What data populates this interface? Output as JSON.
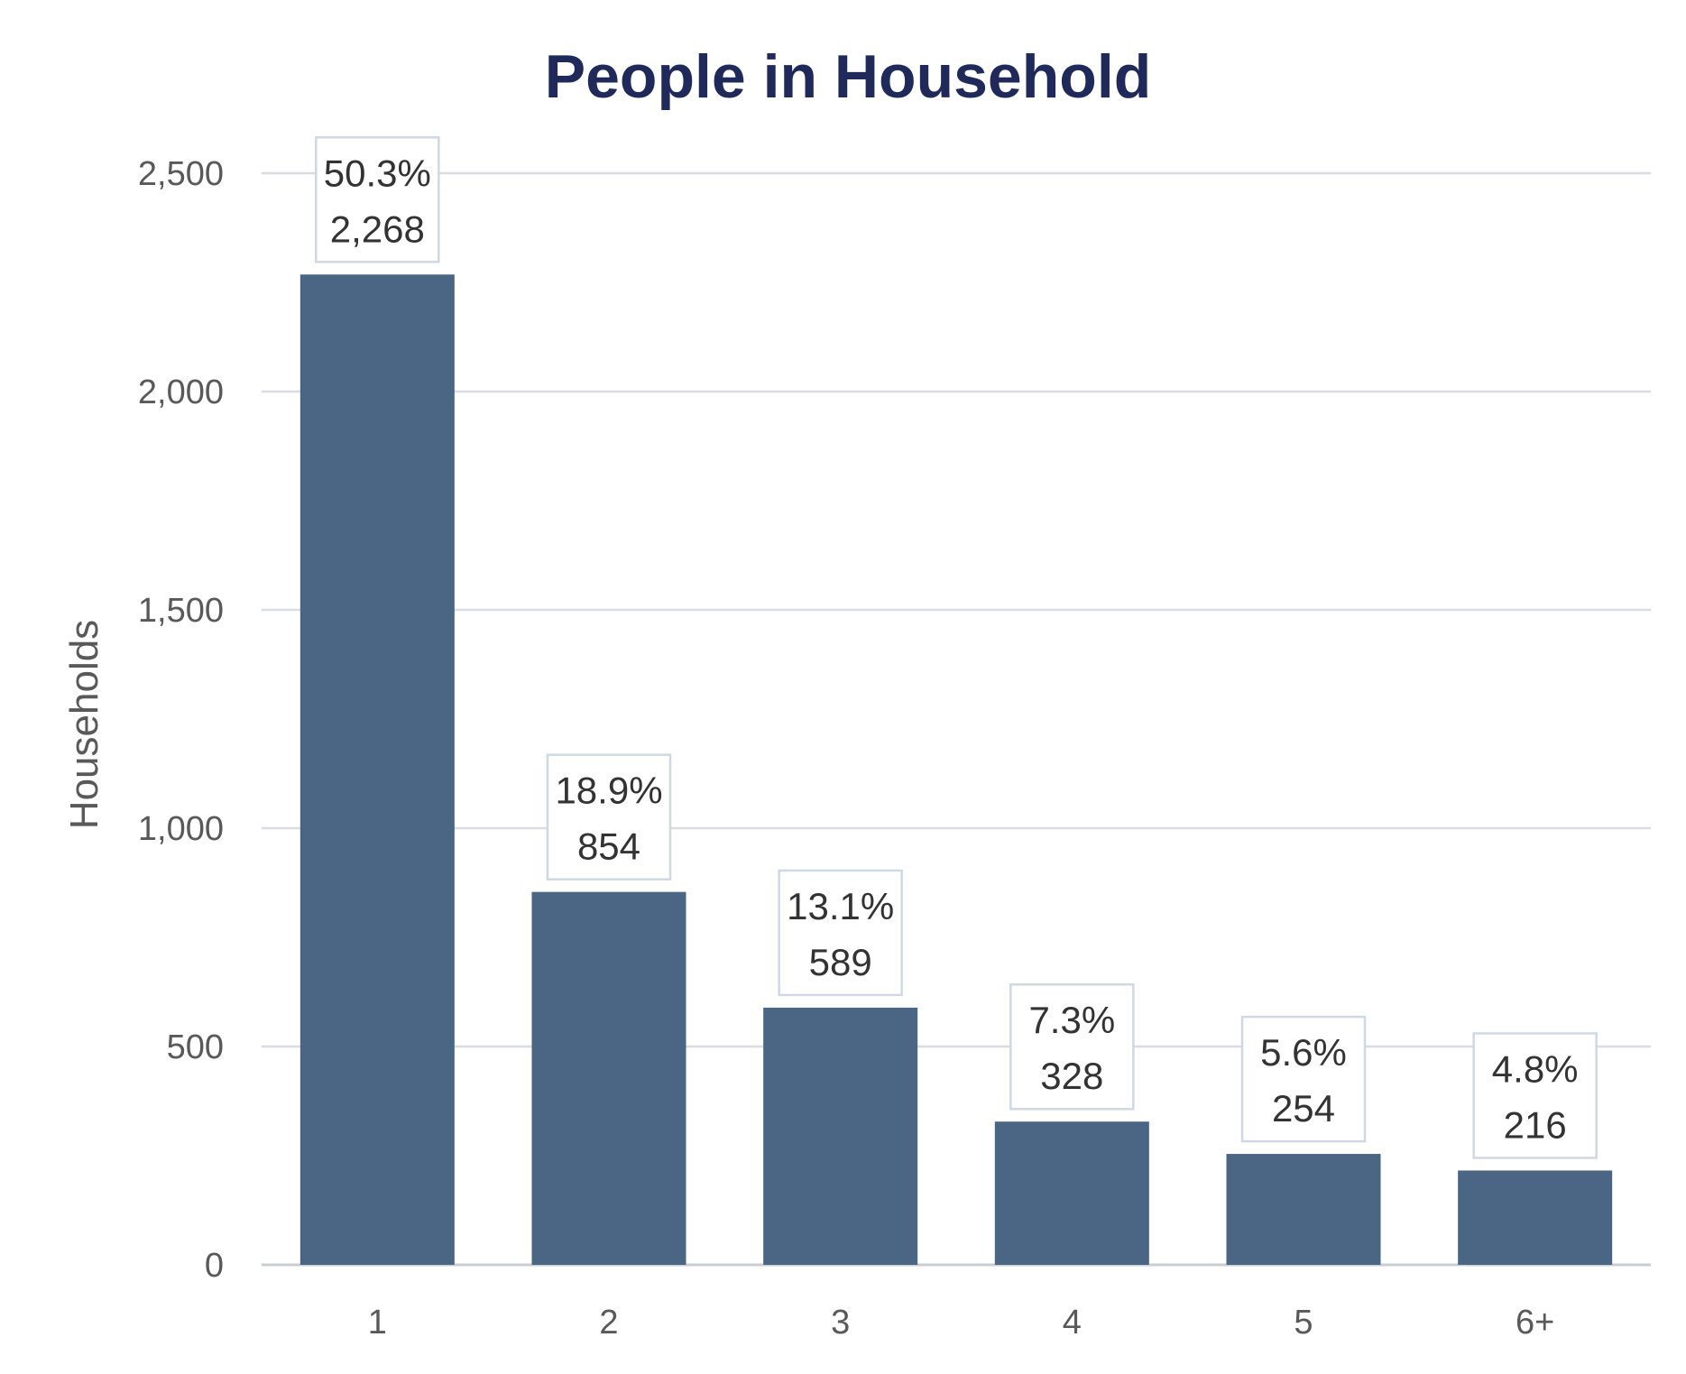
{
  "chart_data": {
    "type": "bar",
    "title": "People in Household",
    "xlabel": "",
    "ylabel": "Households",
    "categories": [
      "1",
      "2",
      "3",
      "4",
      "5",
      "6+"
    ],
    "values": [
      2268,
      854,
      589,
      328,
      254,
      216
    ],
    "percent_labels": [
      "50.3%",
      "18.9%",
      "13.1%",
      "7.3%",
      "5.6%",
      "4.8%"
    ],
    "value_labels": [
      "2,268",
      "854",
      "589",
      "328",
      "254",
      "216"
    ],
    "yticks": [
      0,
      500,
      1000,
      1500,
      2000,
      2500
    ],
    "ytick_labels": [
      "0",
      "500",
      "1,000",
      "1,500",
      "2,000",
      "2,500"
    ],
    "ylim": [
      0,
      2500
    ],
    "grid": true,
    "legend": "none",
    "colors": {
      "bar": "#4b6584",
      "title": "#1f2a5a",
      "grid": "#d9dde3",
      "label_border": "#cfd8e3"
    }
  }
}
